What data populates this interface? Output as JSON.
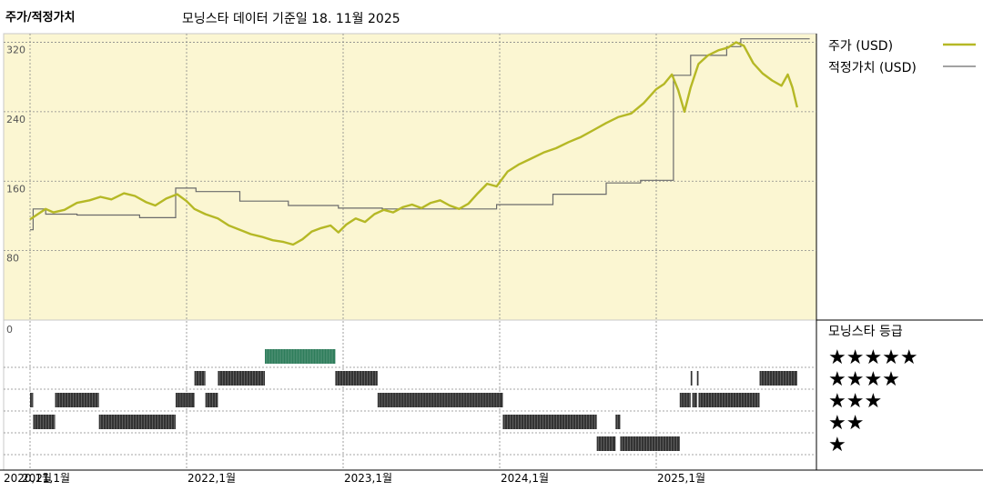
{
  "header": {
    "left_title": "주가/적정가치",
    "center_title": "모닝스타 데이터 기준일 18. 11월 2025"
  },
  "colors": {
    "price_line": "#b5b825",
    "fair_value_line": "#6b6b6b",
    "panel_bg": "#fbf6d2",
    "rating_bar": "#333333",
    "rating_bar_5": "#2e7d5b"
  },
  "chart_data": [
    {
      "type": "line",
      "title": "",
      "y_ticks": [
        "80",
        "160",
        "240",
        "320"
      ],
      "ylim": [
        0,
        330
      ],
      "x_labels": [
        {
          "label": "2020,1월",
          "x": 2020.0
        },
        {
          "label": "2021,1월",
          "x": 2021.0
        },
        {
          "label": "2022,1월",
          "x": 2022.0
        },
        {
          "label": "2023,1월",
          "x": 2023.0
        },
        {
          "label": "2024,1월",
          "x": 2024.0
        },
        {
          "label": "2025,1월",
          "x": 2025.0
        }
      ],
      "xlim": [
        2021.0,
        2026.0
      ],
      "legend": "right",
      "series": [
        {
          "name": "주가 (USD)",
          "points": [
            [
              2021.0,
              116
            ],
            [
              2021.05,
              122
            ],
            [
              2021.1,
              128
            ],
            [
              2021.15,
              124
            ],
            [
              2021.22,
              127
            ],
            [
              2021.3,
              135
            ],
            [
              2021.38,
              138
            ],
            [
              2021.45,
              142
            ],
            [
              2021.52,
              139
            ],
            [
              2021.6,
              146
            ],
            [
              2021.67,
              143
            ],
            [
              2021.74,
              136
            ],
            [
              2021.8,
              132
            ],
            [
              2021.87,
              140
            ],
            [
              2021.94,
              145
            ],
            [
              2022.0,
              137
            ],
            [
              2022.05,
              128
            ],
            [
              2022.12,
              122
            ],
            [
              2022.2,
              117
            ],
            [
              2022.27,
              109
            ],
            [
              2022.34,
              104
            ],
            [
              2022.41,
              99
            ],
            [
              2022.48,
              96
            ],
            [
              2022.55,
              92
            ],
            [
              2022.62,
              90
            ],
            [
              2022.68,
              87
            ],
            [
              2022.74,
              93
            ],
            [
              2022.8,
              102
            ],
            [
              2022.86,
              106
            ],
            [
              2022.92,
              109
            ],
            [
              2022.97,
              101
            ],
            [
              2023.02,
              110
            ],
            [
              2023.08,
              117
            ],
            [
              2023.14,
              113
            ],
            [
              2023.2,
              122
            ],
            [
              2023.26,
              127
            ],
            [
              2023.32,
              124
            ],
            [
              2023.38,
              130
            ],
            [
              2023.44,
              133
            ],
            [
              2023.5,
              129
            ],
            [
              2023.56,
              135
            ],
            [
              2023.62,
              138
            ],
            [
              2023.68,
              132
            ],
            [
              2023.74,
              128
            ],
            [
              2023.8,
              134
            ],
            [
              2023.86,
              146
            ],
            [
              2023.92,
              157
            ],
            [
              2023.98,
              154
            ],
            [
              2024.05,
              171
            ],
            [
              2024.12,
              179
            ],
            [
              2024.2,
              186
            ],
            [
              2024.28,
              193
            ],
            [
              2024.36,
              198
            ],
            [
              2024.44,
              205
            ],
            [
              2024.52,
              211
            ],
            [
              2024.6,
              219
            ],
            [
              2024.68,
              227
            ],
            [
              2024.76,
              234
            ],
            [
              2024.84,
              238
            ],
            [
              2024.92,
              250
            ],
            [
              2025.0,
              266
            ],
            [
              2025.05,
              272
            ],
            [
              2025.1,
              283
            ],
            [
              2025.14,
              265
            ],
            [
              2025.18,
              240
            ],
            [
              2025.22,
              268
            ],
            [
              2025.27,
              295
            ],
            [
              2025.33,
              305
            ],
            [
              2025.4,
              311
            ],
            [
              2025.46,
              314
            ],
            [
              2025.51,
              320
            ],
            [
              2025.56,
              316
            ],
            [
              2025.62,
              296
            ],
            [
              2025.68,
              284
            ],
            [
              2025.74,
              276
            ],
            [
              2025.8,
              270
            ],
            [
              2025.84,
              283
            ],
            [
              2025.87,
              268
            ],
            [
              2025.9,
              245
            ]
          ]
        },
        {
          "name": "적정가치 (USD)",
          "points": [
            [
              2021.0,
              104
            ],
            [
              2021.02,
              104
            ],
            [
              2021.02,
              128
            ],
            [
              2021.1,
              128
            ],
            [
              2021.1,
              122
            ],
            [
              2021.3,
              122
            ],
            [
              2021.3,
              121
            ],
            [
              2021.7,
              121
            ],
            [
              2021.7,
              118
            ],
            [
              2021.93,
              118
            ],
            [
              2021.93,
              152
            ],
            [
              2022.06,
              152
            ],
            [
              2022.06,
              148
            ],
            [
              2022.34,
              148
            ],
            [
              2022.34,
              137
            ],
            [
              2022.65,
              137
            ],
            [
              2022.65,
              132
            ],
            [
              2022.97,
              132
            ],
            [
              2022.97,
              129
            ],
            [
              2023.25,
              129
            ],
            [
              2023.25,
              128
            ],
            [
              2023.98,
              128
            ],
            [
              2023.98,
              133
            ],
            [
              2024.34,
              133
            ],
            [
              2024.34,
              145
            ],
            [
              2024.68,
              145
            ],
            [
              2024.68,
              158
            ],
            [
              2024.9,
              158
            ],
            [
              2024.9,
              161
            ],
            [
              2025.11,
              161
            ],
            [
              2025.11,
              282
            ],
            [
              2025.22,
              282
            ],
            [
              2025.22,
              305
            ],
            [
              2025.45,
              305
            ],
            [
              2025.45,
              315
            ],
            [
              2025.54,
              315
            ],
            [
              2025.54,
              324
            ],
            [
              2025.98,
              324
            ]
          ]
        }
      ]
    },
    {
      "type": "bar",
      "title": "모닝스타 등급",
      "y_ticks": [
        "0"
      ],
      "levels": [
        "★★★★★",
        "★★★★",
        "★★★",
        "★★",
        "★"
      ],
      "series": [
        {
          "name": "등급 구간",
          "segments": [
            {
              "stars": 3,
              "start": 2021.0,
              "end": 2021.02
            },
            {
              "stars": 2,
              "start": 2021.02,
              "end": 2021.16
            },
            {
              "stars": 3,
              "start": 2021.16,
              "end": 2021.44
            },
            {
              "stars": 2,
              "start": 2021.44,
              "end": 2021.93
            },
            {
              "stars": 3,
              "start": 2021.93,
              "end": 2022.05
            },
            {
              "stars": 4,
              "start": 2022.05,
              "end": 2022.12
            },
            {
              "stars": 3,
              "start": 2022.12,
              "end": 2022.2
            },
            {
              "stars": 4,
              "start": 2022.2,
              "end": 2022.5
            },
            {
              "stars": 5,
              "start": 2022.5,
              "end": 2022.95
            },
            {
              "stars": 4,
              "start": 2022.95,
              "end": 2023.22
            },
            {
              "stars": 3,
              "start": 2023.22,
              "end": 2024.02
            },
            {
              "stars": 2,
              "start": 2024.02,
              "end": 2024.62
            },
            {
              "stars": 1,
              "start": 2024.62,
              "end": 2024.74
            },
            {
              "stars": 2,
              "start": 2024.74,
              "end": 2024.77
            },
            {
              "stars": 1,
              "start": 2024.77,
              "end": 2025.15
            },
            {
              "stars": 3,
              "start": 2025.15,
              "end": 2025.22
            },
            {
              "stars": 4,
              "start": 2025.22,
              "end": 2025.23
            },
            {
              "stars": 3,
              "start": 2025.23,
              "end": 2025.26
            },
            {
              "stars": 4,
              "start": 2025.26,
              "end": 2025.27
            },
            {
              "stars": 3,
              "start": 2025.27,
              "end": 2025.66
            },
            {
              "stars": 4,
              "start": 2025.66,
              "end": 2025.9
            }
          ]
        }
      ]
    }
  ]
}
